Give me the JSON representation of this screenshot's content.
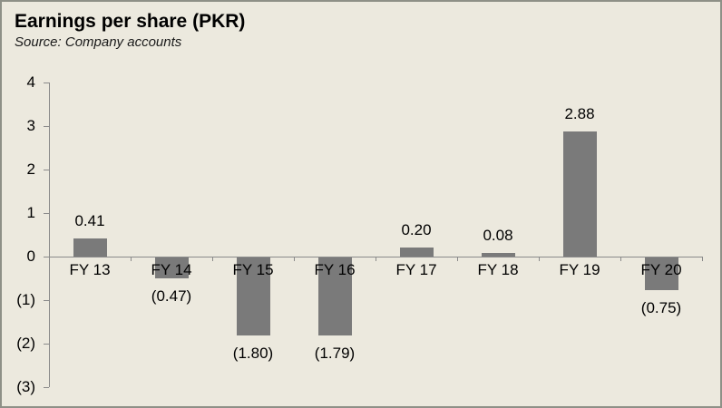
{
  "header": {
    "title": "Earnings per share (PKR)",
    "source": "Source: Company accounts"
  },
  "chart_data": {
    "type": "bar",
    "title": "Earnings per share (PKR)",
    "subtitle": "Source: Company accounts",
    "categories": [
      "FY 13",
      "FY 14",
      "FY 15",
      "FY 16",
      "FY 17",
      "FY 18",
      "FY 19",
      "FY 20"
    ],
    "values": [
      0.41,
      -0.47,
      -1.8,
      -1.79,
      0.2,
      0.08,
      2.88,
      -0.75
    ],
    "value_labels": [
      "0.41",
      "(0.47)",
      "(1.80)",
      "(1.79)",
      "0.20",
      "0.08",
      "2.88",
      "(0.75)"
    ],
    "xlabel": "",
    "ylabel": "",
    "ylim": [
      -3,
      4
    ],
    "y_axis": {
      "tick_labels": [
        "4",
        "3",
        "2",
        "1",
        "0",
        "(1)",
        "(2)",
        "(3)"
      ],
      "tick_values": [
        4,
        3,
        2,
        1,
        0,
        -1,
        -2,
        -3
      ]
    },
    "grid": "off",
    "legend": "none",
    "value_label_position": "outside-end",
    "negative_number_format": "parentheses",
    "colors": {
      "bar": "#7A7A7A",
      "axis": "#8A8A8A",
      "text": "#000000",
      "background": "#ECE9DE",
      "border": "#8E9087"
    }
  }
}
